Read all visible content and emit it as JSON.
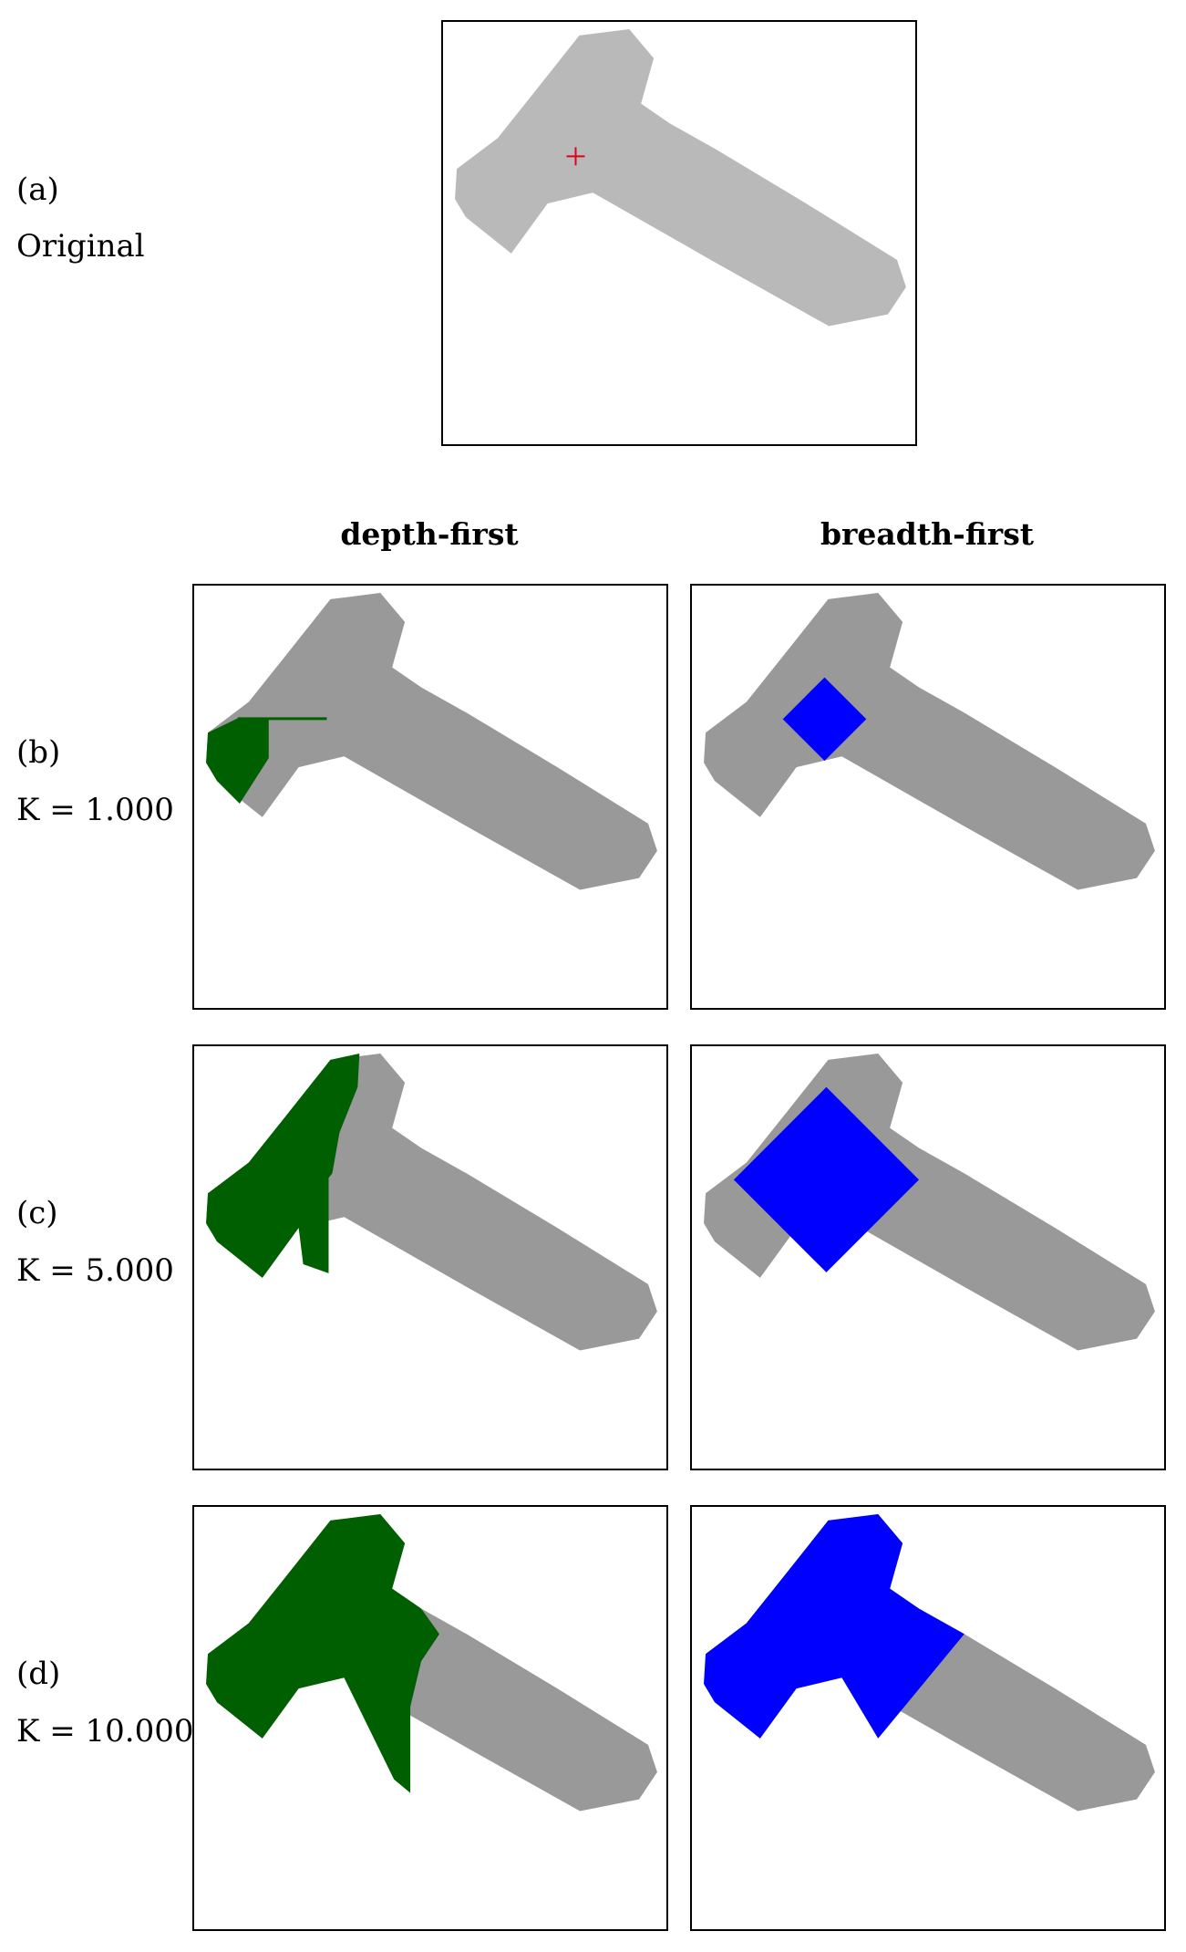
{
  "colors": {
    "shape_original": "#b9b9b9",
    "shape": "#999999",
    "depth_first": "#005f00",
    "breadth_first": "#0000ff",
    "seed_marker": "#e0001b"
  },
  "original": {
    "letter": "(a)",
    "caption": "Original"
  },
  "columns": {
    "depth": "depth-first",
    "breadth": "breadth-first"
  },
  "rows": [
    {
      "letter": "(b)",
      "k_symbol": "K",
      "k_value": "= 1.000"
    },
    {
      "letter": "(c)",
      "k_symbol": "K",
      "k_value": "= 5.000"
    },
    {
      "letter": "(d)",
      "k_symbol": "K",
      "k_value": "= 10.000"
    }
  ]
}
